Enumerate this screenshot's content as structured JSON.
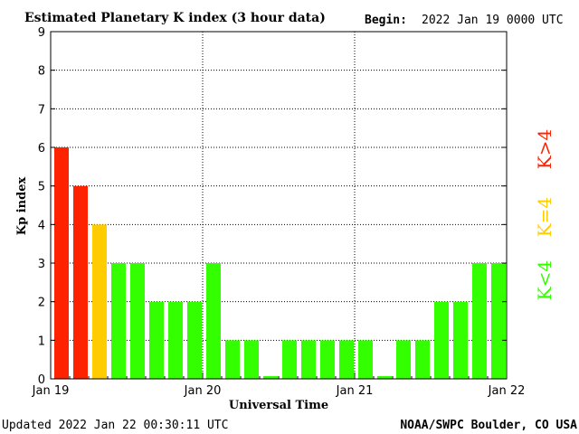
{
  "chart_data": {
    "type": "bar",
    "title": "Estimated Planetary K index (3 hour data)",
    "begin_label": "Begin:",
    "begin_value": "2022 Jan 19 0000 UTC",
    "xlabel": "Universal Time",
    "ylabel": "Kp index",
    "ylim": [
      0,
      9
    ],
    "yticks": [
      "0",
      "1",
      "2",
      "3",
      "4",
      "5",
      "6",
      "7",
      "8",
      "9"
    ],
    "xticks": [
      "Jan 19",
      "Jan 20",
      "Jan 21",
      "Jan 22"
    ],
    "values": [
      6,
      5,
      4,
      3,
      3,
      2,
      2,
      2,
      3,
      1,
      1,
      0.07,
      1,
      1,
      1,
      1,
      1,
      0.07,
      1,
      1,
      2,
      2,
      3,
      3
    ],
    "grid": true,
    "legend": [
      {
        "text": "K<4",
        "color": "#33ff00"
      },
      {
        "text": "K=4",
        "color": "#ffcc00"
      },
      {
        "text": "K>4",
        "color": "#ff2200"
      }
    ],
    "colors": {
      "low": "#33ff00",
      "eq": "#ffcc00",
      "high": "#ff2200"
    }
  },
  "footer": {
    "updated": "Updated 2022 Jan 22 00:30:11 UTC",
    "source": "NOAA/SWPC Boulder, CO USA"
  }
}
